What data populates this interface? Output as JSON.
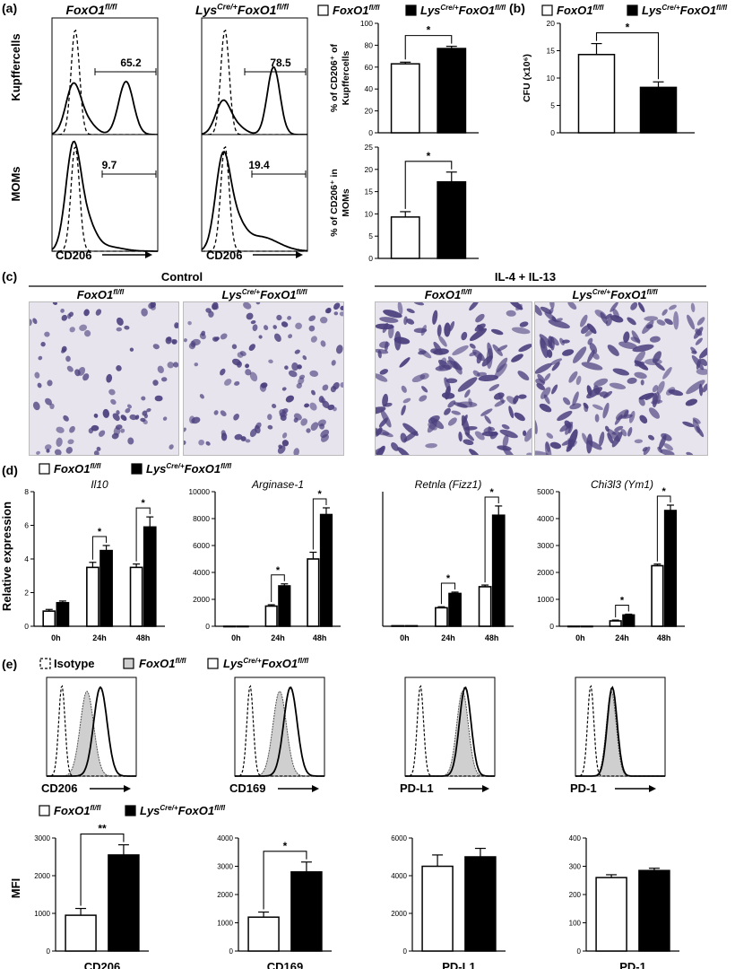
{
  "figure": {
    "panel_labels": [
      "(a)",
      "(b)",
      "(c)",
      "(d)",
      "(e)"
    ],
    "groups": {
      "wt": "FoxO1",
      "wt_sup": "fl/fl",
      "ko": "Lys",
      "ko_sup1": "Cre/+",
      "ko_mid": "FoxO1",
      "ko_sup2": "fl/fl"
    },
    "isotype_label": "Isotype",
    "colors": {
      "wt_fill": "#ffffff",
      "ko_fill": "#000000",
      "isotype_fill": "#cfcfcf",
      "micro_bg": "#e7e4ee",
      "cell": "#4b3f7d"
    }
  },
  "panel_a": {
    "row_labels": [
      "Kupffercells",
      "MOMs"
    ],
    "axis_label": "CD206",
    "flow_values": [
      {
        "row": 0,
        "col": 0,
        "value": "65.2"
      },
      {
        "row": 0,
        "col": 1,
        "value": "78.5"
      },
      {
        "row": 1,
        "col": 0,
        "value": "9.7"
      },
      {
        "row": 1,
        "col": 1,
        "value": "19.4"
      }
    ]
  },
  "panel_c": {
    "conditions": [
      "Control",
      "IL-4 + IL-13"
    ]
  },
  "panel_d": {
    "ylabel": "Relative expression"
  },
  "panel_e": {
    "histogram_labels": [
      "CD206",
      "CD169",
      "PD-L1",
      "PD-1"
    ],
    "mfi_ylabel": "MFI"
  },
  "chart_data": [
    {
      "id": "a_kupffer",
      "type": "bar",
      "ylabel": "% of CD206⁺ of Kupffercells",
      "ylim": [
        0,
        100
      ],
      "yticks": [
        0,
        20,
        40,
        60,
        80,
        100
      ],
      "categories": [
        "FoxO1 fl/fl",
        "LysCre/+ FoxO1 fl/fl"
      ],
      "values": [
        63,
        77
      ],
      "errors": [
        1.5,
        2
      ],
      "significance": "*"
    },
    {
      "id": "a_moms",
      "type": "bar",
      "ylabel": "% of CD206⁺ in MOMs",
      "ylim": [
        0,
        25
      ],
      "yticks": [
        0,
        5,
        10,
        15,
        20,
        25
      ],
      "categories": [
        "FoxO1 fl/fl",
        "LysCre/+ FoxO1 fl/fl"
      ],
      "values": [
        9.3,
        17.2
      ],
      "errors": [
        1.2,
        2.2
      ],
      "significance": "*"
    },
    {
      "id": "b_cfu",
      "type": "bar",
      "ylabel": "CFU (x10⁶)",
      "ylim": [
        0,
        20
      ],
      "yticks": [
        0,
        5,
        10,
        15,
        20
      ],
      "categories": [
        "FoxO1 fl/fl",
        "LysCre/+ FoxO1 fl/fl"
      ],
      "values": [
        14.3,
        8.3
      ],
      "errors": [
        2,
        1
      ],
      "significance": "*"
    },
    {
      "id": "d_il10",
      "type": "bar",
      "title": "Il10",
      "ylim": [
        0,
        8
      ],
      "yticks": [
        0,
        2,
        4,
        6,
        8
      ],
      "categories": [
        "0h",
        "24h",
        "48h"
      ],
      "series": [
        {
          "name": "FoxO1 fl/fl",
          "values": [
            0.9,
            3.5,
            3.5
          ],
          "errors": [
            0.1,
            0.3,
            0.2
          ]
        },
        {
          "name": "LysCre/+ FoxO1 fl/fl",
          "values": [
            1.4,
            4.5,
            5.9
          ],
          "errors": [
            0.1,
            0.3,
            0.6
          ]
        }
      ],
      "significance": [
        "",
        "*",
        "*"
      ]
    },
    {
      "id": "d_arg1",
      "type": "bar",
      "title": "Arginase-1",
      "ylim": [
        0,
        10000
      ],
      "yticks": [
        0,
        2000,
        4000,
        6000,
        8000,
        10000
      ],
      "categories": [
        "0h",
        "24h",
        "48h"
      ],
      "series": [
        {
          "name": "FoxO1 fl/fl",
          "values": [
            0,
            1500,
            5000
          ],
          "errors": [
            0,
            100,
            500
          ]
        },
        {
          "name": "LysCre/+ FoxO1 fl/fl",
          "values": [
            0,
            3000,
            8300
          ],
          "errors": [
            0,
            150,
            500
          ]
        }
      ],
      "significance": [
        "",
        "*",
        "*"
      ]
    },
    {
      "id": "d_retnla",
      "type": "bar",
      "title": "Retnla (Fizz1)",
      "ylim": [
        0,
        8
      ],
      "yticks": [],
      "categories": [
        "0h",
        "24h",
        "48h"
      ],
      "series": [
        {
          "name": "FoxO1 fl/fl",
          "values": [
            0.03,
            1.1,
            2.35
          ],
          "errors": [
            0,
            0.06,
            0.1
          ]
        },
        {
          "name": "LysCre/+ FoxO1 fl/fl",
          "values": [
            0.03,
            1.95,
            6.6
          ],
          "errors": [
            0,
            0.08,
            0.55
          ]
        }
      ],
      "significance": [
        "",
        "*",
        "*"
      ]
    },
    {
      "id": "d_chi3l3",
      "type": "bar",
      "title": "Chi3l3 (Ym1)",
      "ylim": [
        0,
        5000
      ],
      "yticks": [
        0,
        1000,
        2000,
        3000,
        4000,
        5000
      ],
      "categories": [
        "0h",
        "24h",
        "48h"
      ],
      "series": [
        {
          "name": "FoxO1 fl/fl",
          "values": [
            0,
            200,
            2250
          ],
          "errors": [
            0,
            30,
            60
          ]
        },
        {
          "name": "LysCre/+ FoxO1 fl/fl",
          "values": [
            0,
            420,
            4300
          ],
          "errors": [
            0,
            30,
            200
          ]
        }
      ],
      "significance": [
        "",
        "*",
        "*"
      ]
    },
    {
      "id": "e_cd206",
      "type": "bar",
      "title": "CD206",
      "ylim": [
        0,
        3000
      ],
      "yticks": [
        0,
        1000,
        2000,
        3000
      ],
      "categories": [
        "FoxO1 fl/fl",
        "LysCre/+ FoxO1 fl/fl"
      ],
      "values": [
        950,
        2550
      ],
      "errors": [
        180,
        270
      ],
      "significance": "**"
    },
    {
      "id": "e_cd169",
      "type": "bar",
      "title": "CD169",
      "ylim": [
        0,
        4000
      ],
      "yticks": [
        0,
        1000,
        2000,
        3000,
        4000
      ],
      "categories": [
        "FoxO1 fl/fl",
        "LysCre/+ FoxO1 fl/fl"
      ],
      "values": [
        1200,
        2800
      ],
      "errors": [
        180,
        350
      ],
      "significance": "*"
    },
    {
      "id": "e_pdl1",
      "type": "bar",
      "title": "PD-L1",
      "ylim": [
        0,
        6000
      ],
      "yticks": [
        0,
        2000,
        4000,
        6000
      ],
      "categories": [
        "FoxO1 fl/fl",
        "LysCre/+ FoxO1 fl/fl"
      ],
      "values": [
        4500,
        5000
      ],
      "errors": [
        600,
        450
      ],
      "significance": ""
    },
    {
      "id": "e_pd1",
      "type": "bar",
      "title": "PD-1",
      "ylim": [
        0,
        400
      ],
      "yticks": [
        0,
        100,
        200,
        300,
        400
      ],
      "categories": [
        "FoxO1 fl/fl",
        "LysCre/+ FoxO1 fl/fl"
      ],
      "values": [
        260,
        285
      ],
      "errors": [
        10,
        8
      ],
      "significance": ""
    }
  ]
}
